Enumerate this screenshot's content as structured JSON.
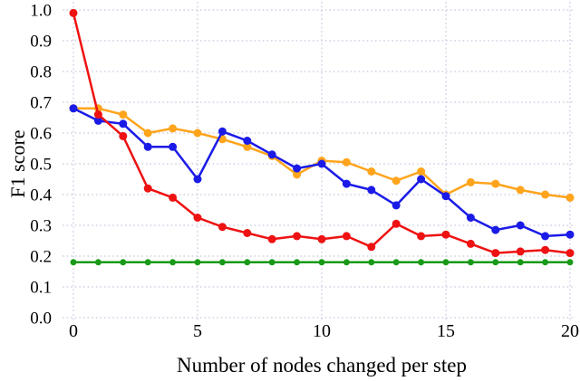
{
  "chart_data": {
    "type": "line",
    "title": "",
    "xlabel": "Number of nodes changed per step",
    "ylabel": "F1 score",
    "xlim": [
      0,
      20
    ],
    "ylim": [
      0.0,
      1.0
    ],
    "xticks": [
      "0",
      "5",
      "10",
      "15",
      "20"
    ],
    "yticks": [
      "0.0",
      "0.1",
      "0.2",
      "0.3",
      "0.4",
      "0.5",
      "0.6",
      "0.7",
      "0.8",
      "0.9",
      "1.0"
    ],
    "grid": "dotted",
    "grid_color": "#c8c8e0",
    "legend_position": "none",
    "x": [
      0,
      1,
      2,
      3,
      4,
      5,
      6,
      7,
      8,
      9,
      10,
      11,
      12,
      13,
      14,
      15,
      16,
      17,
      18,
      19,
      20
    ],
    "series": [
      {
        "name": "green-series",
        "color": "#189a18",
        "values": [
          0.18,
          0.18,
          0.18,
          0.18,
          0.18,
          0.18,
          0.18,
          0.18,
          0.18,
          0.18,
          0.18,
          0.18,
          0.18,
          0.18,
          0.18,
          0.18,
          0.18,
          0.18,
          0.18,
          0.18,
          0.18
        ]
      },
      {
        "name": "orange-series",
        "color": "#ffa41c",
        "values": [
          0.68,
          0.68,
          0.66,
          0.6,
          0.615,
          0.6,
          0.58,
          0.555,
          0.525,
          0.465,
          0.51,
          0.505,
          0.475,
          0.445,
          0.475,
          0.4,
          0.44,
          0.435,
          0.415,
          0.4,
          0.39
        ]
      },
      {
        "name": "blue-series",
        "color": "#1b1be8",
        "values": [
          0.68,
          0.64,
          0.63,
          0.555,
          0.555,
          0.45,
          0.605,
          0.575,
          0.53,
          0.485,
          0.5,
          0.435,
          0.415,
          0.365,
          0.45,
          0.395,
          0.325,
          0.285,
          0.3,
          0.265,
          0.27
        ]
      },
      {
        "name": "red-series",
        "color": "#ee1212",
        "values": [
          0.99,
          0.66,
          0.59,
          0.42,
          0.39,
          0.325,
          0.295,
          0.275,
          0.255,
          0.265,
          0.255,
          0.265,
          0.23,
          0.305,
          0.265,
          0.27,
          0.24,
          0.21,
          0.215,
          0.22,
          0.21
        ]
      }
    ]
  }
}
